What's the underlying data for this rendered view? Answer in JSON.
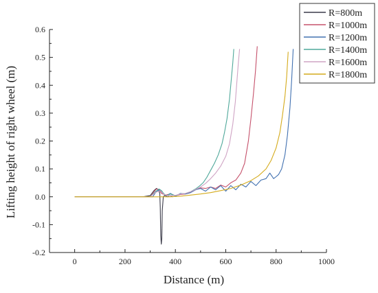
{
  "chart_data": {
    "type": "line",
    "xlabel": "Distance (m)",
    "ylabel": "Lifting height of right wheel (m)",
    "xlim": [
      -100,
      1000
    ],
    "ylim": [
      -0.2,
      0.6
    ],
    "x_ticks": [
      0,
      200,
      400,
      600,
      800,
      1000
    ],
    "y_ticks": [
      -0.2,
      -0.1,
      0.0,
      0.1,
      0.2,
      0.3,
      0.4,
      0.5,
      0.6
    ],
    "x_tick_labels": [
      "0",
      "200",
      "400",
      "600",
      "800",
      "1000"
    ],
    "y_tick_labels": [
      "-0.2",
      "-0.1",
      "0.0",
      "0.1",
      "0.2",
      "0.3",
      "0.4",
      "0.5",
      "0.6"
    ],
    "grid": false,
    "legend_position": "top-right",
    "series": [
      {
        "name": "R=800m",
        "color": "#3a3a48",
        "points": [
          [
            0,
            0
          ],
          [
            270,
            0
          ],
          [
            285,
            0.002
          ],
          [
            300,
            0.004
          ],
          [
            315,
            0.022
          ],
          [
            325,
            0.03
          ],
          [
            333,
            0.025
          ],
          [
            338,
            0.012
          ],
          [
            340,
            -0.04
          ],
          [
            342,
            -0.14
          ],
          [
            344,
            -0.17
          ],
          [
            346,
            -0.15
          ],
          [
            348,
            -0.05
          ],
          [
            352,
            0.0
          ],
          [
            358,
            0.005
          ],
          [
            368,
            0.0
          ],
          [
            378,
            0.004
          ],
          [
            390,
            0.0
          ]
        ]
      },
      {
        "name": "R=1000m",
        "color": "#c5506a",
        "points": [
          [
            0,
            0
          ],
          [
            300,
            0
          ],
          [
            315,
            0.018
          ],
          [
            325,
            0.028
          ],
          [
            335,
            0.026
          ],
          [
            345,
            0.012
          ],
          [
            360,
            0.006
          ],
          [
            380,
            0.01
          ],
          [
            400,
            0.004
          ],
          [
            420,
            0.008
          ],
          [
            440,
            0.01
          ],
          [
            460,
            0.015
          ],
          [
            480,
            0.025
          ],
          [
            500,
            0.032
          ],
          [
            520,
            0.03
          ],
          [
            540,
            0.035
          ],
          [
            560,
            0.03
          ],
          [
            580,
            0.042
          ],
          [
            600,
            0.035
          ],
          [
            620,
            0.05
          ],
          [
            640,
            0.06
          ],
          [
            660,
            0.085
          ],
          [
            675,
            0.12
          ],
          [
            690,
            0.2
          ],
          [
            700,
            0.28
          ],
          [
            710,
            0.37
          ],
          [
            718,
            0.45
          ],
          [
            725,
            0.54
          ]
        ]
      },
      {
        "name": "R=1200m",
        "color": "#4070b0",
        "points": [
          [
            0,
            0
          ],
          [
            310,
            0
          ],
          [
            325,
            0.02
          ],
          [
            340,
            0.025
          ],
          [
            350,
            0.012
          ],
          [
            365,
            0.004
          ],
          [
            380,
            0.012
          ],
          [
            400,
            0.002
          ],
          [
            420,
            0.012
          ],
          [
            440,
            0.01
          ],
          [
            460,
            0.015
          ],
          [
            480,
            0.025
          ],
          [
            500,
            0.03
          ],
          [
            520,
            0.02
          ],
          [
            540,
            0.035
          ],
          [
            560,
            0.025
          ],
          [
            580,
            0.04
          ],
          [
            600,
            0.02
          ],
          [
            620,
            0.04
          ],
          [
            640,
            0.025
          ],
          [
            660,
            0.045
          ],
          [
            680,
            0.035
          ],
          [
            700,
            0.055
          ],
          [
            720,
            0.04
          ],
          [
            740,
            0.06
          ],
          [
            760,
            0.065
          ],
          [
            775,
            0.085
          ],
          [
            790,
            0.065
          ],
          [
            800,
            0.072
          ],
          [
            810,
            0.08
          ],
          [
            822,
            0.1
          ],
          [
            835,
            0.15
          ],
          [
            845,
            0.22
          ],
          [
            855,
            0.32
          ],
          [
            862,
            0.42
          ],
          [
            868,
            0.53
          ]
        ]
      },
      {
        "name": "R=1400m",
        "color": "#4fa89a",
        "points": [
          [
            0,
            0
          ],
          [
            300,
            0
          ],
          [
            320,
            0.018
          ],
          [
            335,
            0.028
          ],
          [
            345,
            0.022
          ],
          [
            355,
            0.01
          ],
          [
            365,
            0.004
          ],
          [
            380,
            0.01
          ],
          [
            400,
            0.004
          ],
          [
            420,
            0.01
          ],
          [
            440,
            0.012
          ],
          [
            460,
            0.018
          ],
          [
            480,
            0.028
          ],
          [
            495,
            0.038
          ],
          [
            510,
            0.05
          ],
          [
            525,
            0.07
          ],
          [
            540,
            0.095
          ],
          [
            555,
            0.12
          ],
          [
            570,
            0.15
          ],
          [
            585,
            0.19
          ],
          [
            595,
            0.23
          ],
          [
            605,
            0.28
          ],
          [
            615,
            0.35
          ],
          [
            622,
            0.42
          ],
          [
            628,
            0.48
          ],
          [
            632,
            0.53
          ]
        ]
      },
      {
        "name": "R=1600m",
        "color": "#cfa3c4",
        "points": [
          [
            0,
            0
          ],
          [
            300,
            0
          ],
          [
            320,
            0.015
          ],
          [
            340,
            0.022
          ],
          [
            355,
            0.008
          ],
          [
            375,
            0.003
          ],
          [
            400,
            0.005
          ],
          [
            420,
            0.01
          ],
          [
            440,
            0.012
          ],
          [
            460,
            0.018
          ],
          [
            480,
            0.026
          ],
          [
            500,
            0.035
          ],
          [
            520,
            0.048
          ],
          [
            540,
            0.065
          ],
          [
            560,
            0.085
          ],
          [
            580,
            0.11
          ],
          [
            600,
            0.145
          ],
          [
            615,
            0.19
          ],
          [
            628,
            0.26
          ],
          [
            638,
            0.34
          ],
          [
            645,
            0.42
          ],
          [
            650,
            0.48
          ],
          [
            655,
            0.53
          ]
        ]
      },
      {
        "name": "R=1800m",
        "color": "#d4aa1a",
        "points": [
          [
            0,
            0
          ],
          [
            380,
            0
          ],
          [
            420,
            0.002
          ],
          [
            460,
            0.006
          ],
          [
            500,
            0.01
          ],
          [
            540,
            0.015
          ],
          [
            580,
            0.022
          ],
          [
            620,
            0.03
          ],
          [
            660,
            0.042
          ],
          [
            700,
            0.058
          ],
          [
            730,
            0.075
          ],
          [
            760,
            0.1
          ],
          [
            780,
            0.13
          ],
          [
            800,
            0.175
          ],
          [
            815,
            0.23
          ],
          [
            825,
            0.29
          ],
          [
            835,
            0.36
          ],
          [
            842,
            0.43
          ],
          [
            848,
            0.52
          ]
        ]
      }
    ]
  }
}
